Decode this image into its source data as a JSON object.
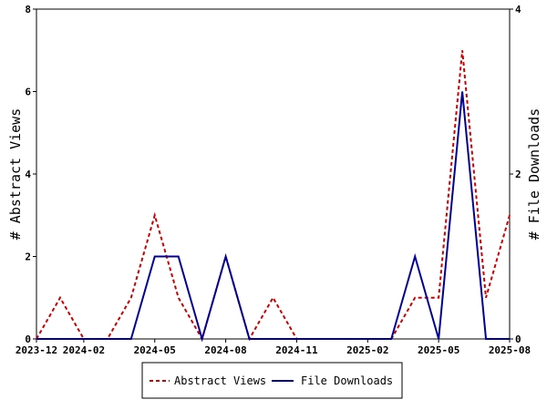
{
  "chart_data": {
    "type": "line",
    "x": [
      "2023-12",
      "2024-01",
      "2024-02",
      "2024-03",
      "2024-04",
      "2024-05",
      "2024-06",
      "2024-07",
      "2024-08",
      "2024-09",
      "2024-10",
      "2024-11",
      "2024-12",
      "2025-01",
      "2025-02",
      "2025-03",
      "2025-04",
      "2025-05",
      "2025-06",
      "2025-07",
      "2025-08"
    ],
    "x_ticks": [
      "2023-12",
      "2024-02",
      "2024-05",
      "2024-08",
      "2024-11",
      "2025-02",
      "2025-05",
      "2025-08"
    ],
    "ylabel_left": "# Abstract Views",
    "ylabel_right": "# File Downloads",
    "ylim_left": [
      0,
      8
    ],
    "ylim_right": [
      0,
      4
    ],
    "y_ticks_left": [
      "0",
      "2",
      "4",
      "6",
      "8"
    ],
    "y_ticks_right": [
      "0",
      "2",
      "4"
    ],
    "grid": false,
    "legend_position": "bottom",
    "series": [
      {
        "name": "Abstract Views",
        "axis": "left",
        "color": "#cc0000",
        "style": "dashed",
        "values": [
          0,
          1,
          0,
          0,
          1,
          3,
          1,
          0,
          2,
          0,
          1,
          0,
          0,
          0,
          0,
          0,
          1,
          1,
          7,
          1,
          3
        ]
      },
      {
        "name": "File Downloads",
        "axis": "right",
        "color": "#000099",
        "style": "solid",
        "values": [
          0,
          0,
          0,
          0,
          0,
          1,
          1,
          0,
          1,
          0,
          0,
          0,
          0,
          0,
          0,
          0,
          1,
          0,
          3,
          0,
          0
        ]
      }
    ]
  }
}
